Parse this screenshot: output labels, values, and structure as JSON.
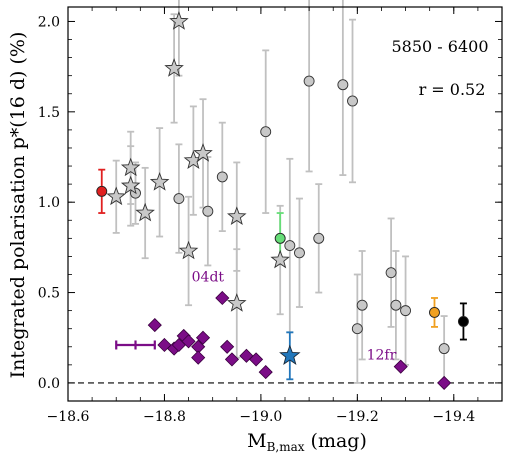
{
  "chart_data": {
    "type": "scatter",
    "xlabel_main": "M",
    "xlabel_sub": "B,max",
    "xlabel_unit": " (mag)",
    "ylabel": "Integrated polarisation p*(16 d) (%)",
    "xlim": [
      -18.6,
      -19.5
    ],
    "ylim": [
      -0.1,
      2.08
    ],
    "x_ticks": [
      -18.6,
      -18.8,
      -19.0,
      -19.2,
      -19.4
    ],
    "x_tick_labels": [
      "−18.6",
      "−18.8",
      "−19.0",
      "−19.2",
      "−19.4"
    ],
    "y_ticks": [
      0.0,
      0.5,
      1.0,
      1.5,
      2.0
    ],
    "y_tick_labels": [
      "0.0",
      "0.5",
      "1.0",
      "1.5",
      "2.0"
    ],
    "reference_line_y": 0.0,
    "annotations": [
      "5850 - 6400",
      "r = 0.52"
    ],
    "colors": {
      "gray_fill": "#c8c8c8",
      "gray_err": "#c0c0c0",
      "purple": "#7b0d87",
      "red": "#e02020",
      "green": "#66dd77",
      "blue": "#2277bb",
      "orange": "#f0a020",
      "black": "#000000"
    },
    "gray_circles": [
      {
        "x": -18.74,
        "y": 1.05,
        "err": 0.17
      },
      {
        "x": -18.83,
        "y": 1.02,
        "err": 0.3
      },
      {
        "x": -18.89,
        "y": 0.95,
        "err": 0.3
      },
      {
        "x": -18.92,
        "y": 1.14,
        "err": 0.3
      },
      {
        "x": -19.01,
        "y": 1.39,
        "err": 0.45
      },
      {
        "x": -19.06,
        "y": 0.76,
        "err": 0.48
      },
      {
        "x": -19.08,
        "y": 0.72,
        "err": 0.3
      },
      {
        "x": -19.1,
        "y": 1.67,
        "err": 0.5
      },
      {
        "x": -19.12,
        "y": 0.8,
        "err": 0.3
      },
      {
        "x": -19.17,
        "y": 1.65,
        "err": 0.5
      },
      {
        "x": -19.19,
        "y": 1.56,
        "err": 0.45
      },
      {
        "x": -19.2,
        "y": 0.3,
        "err": 0.3
      },
      {
        "x": -19.21,
        "y": 0.43,
        "err": 0.3
      },
      {
        "x": -19.27,
        "y": 0.61,
        "err": 0.3
      },
      {
        "x": -19.28,
        "y": 0.43,
        "err": 0.3
      },
      {
        "x": -19.3,
        "y": 0.4,
        "err": 0.3
      },
      {
        "x": -19.38,
        "y": 0.19,
        "err": 0.18
      }
    ],
    "gray_stars": [
      {
        "x": -18.7,
        "y": 1.03,
        "err": 0.2
      },
      {
        "x": -18.73,
        "y": 1.19,
        "err": 0.2
      },
      {
        "x": -18.73,
        "y": 1.09,
        "err": 0.22
      },
      {
        "x": -18.76,
        "y": 0.94,
        "err": 0.25
      },
      {
        "x": -18.79,
        "y": 1.11,
        "err": 0.3
      },
      {
        "x": -18.82,
        "y": 1.74,
        "err": 0.3
      },
      {
        "x": -18.83,
        "y": 2.0,
        "err": 0.3
      },
      {
        "x": -18.85,
        "y": 0.73,
        "err": 0.3
      },
      {
        "x": -18.86,
        "y": 1.23,
        "err": 0.3
      },
      {
        "x": -18.88,
        "y": 1.27,
        "err": 0.3
      },
      {
        "x": -18.95,
        "y": 0.92,
        "err": 0.3
      },
      {
        "x": -18.95,
        "y": 0.44,
        "err": 0.3
      },
      {
        "x": -19.04,
        "y": 0.68,
        "err": 0.3
      }
    ],
    "purple_diamonds": [
      {
        "x": -18.78,
        "y": 0.32
      },
      {
        "x": -18.8,
        "y": 0.21
      },
      {
        "x": -18.82,
        "y": 0.19
      },
      {
        "x": -18.83,
        "y": 0.21
      },
      {
        "x": -18.84,
        "y": 0.26
      },
      {
        "x": -18.85,
        "y": 0.23
      },
      {
        "x": -18.87,
        "y": 0.2
      },
      {
        "x": -18.87,
        "y": 0.14
      },
      {
        "x": -18.88,
        "y": 0.25
      },
      {
        "x": -18.93,
        "y": 0.2
      },
      {
        "x": -18.94,
        "y": 0.13
      },
      {
        "x": -18.92,
        "y": 0.47
      },
      {
        "x": -18.97,
        "y": 0.15
      },
      {
        "x": -18.99,
        "y": 0.13
      },
      {
        "x": -19.01,
        "y": 0.06
      },
      {
        "x": -19.29,
        "y": 0.09
      },
      {
        "x": -19.38,
        "y": 0.0
      }
    ],
    "colored_points": [
      {
        "x": -18.67,
        "y": 1.06,
        "err": 0.12,
        "marker": "circle",
        "color": "red"
      },
      {
        "x": -19.04,
        "y": 0.8,
        "err": 0.14,
        "marker": "circle",
        "color": "green"
      },
      {
        "x": -19.36,
        "y": 0.39,
        "err": 0.08,
        "marker": "circle",
        "color": "orange"
      },
      {
        "x": -19.42,
        "y": 0.34,
        "err": 0.1,
        "marker": "circle",
        "color": "black"
      },
      {
        "x": -19.06,
        "y": 0.15,
        "err": 0.13,
        "marker": "star",
        "color": "blue"
      }
    ],
    "representative_error": {
      "x": -18.74,
      "y": 0.21,
      "xerr": 0.04,
      "yerr": 0.025,
      "color": "purple"
    },
    "labels": [
      {
        "text": "04dt",
        "x": -18.89,
        "y": 0.56,
        "color": "purple"
      },
      {
        "text": "12fr",
        "x": -19.25,
        "y": 0.13,
        "color": "purple"
      }
    ]
  }
}
